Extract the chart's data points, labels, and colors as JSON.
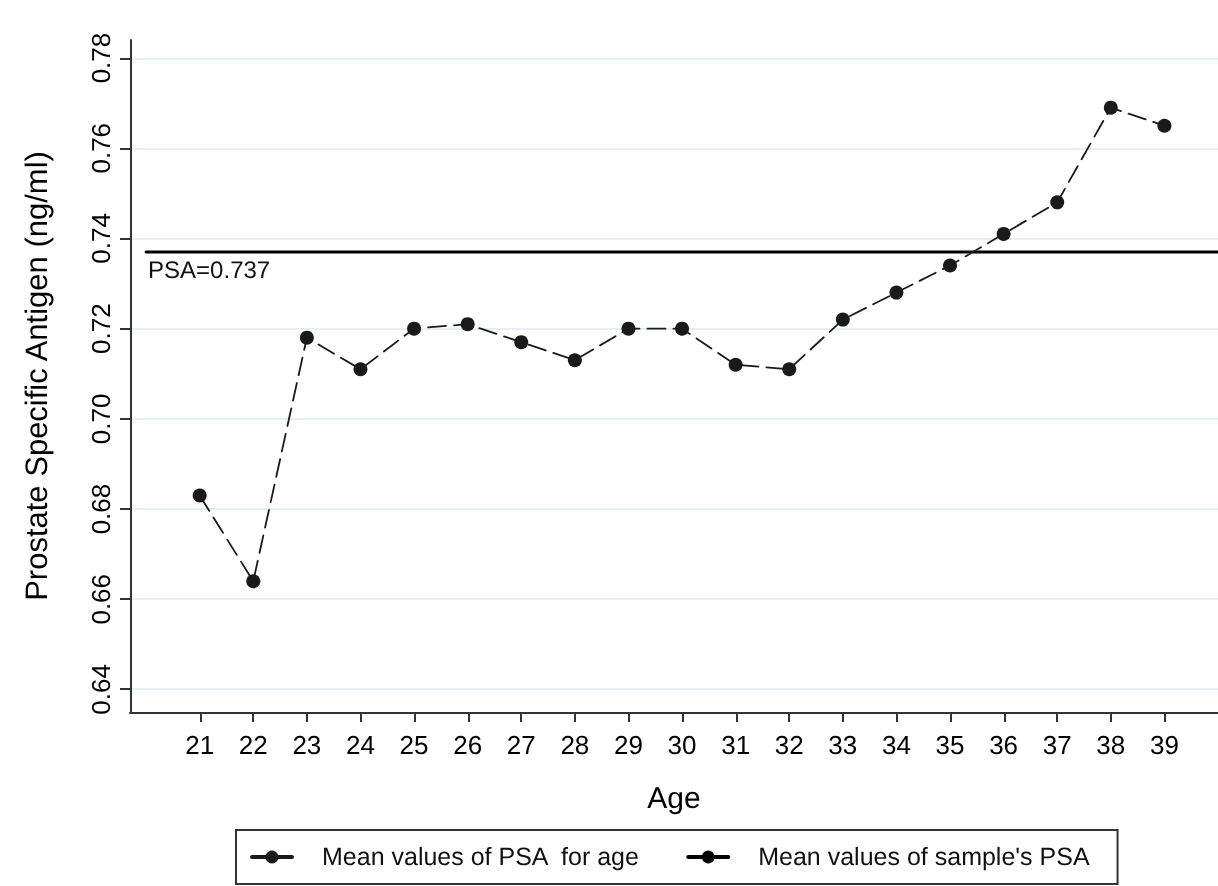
{
  "chart_data": {
    "type": "line",
    "xlabel": "Age",
    "ylabel": "Prostate Specific Antigen (ng/ml)",
    "x": [
      21,
      22,
      23,
      24,
      25,
      26,
      27,
      28,
      29,
      30,
      31,
      32,
      33,
      34,
      35,
      36,
      37,
      38,
      39
    ],
    "series": [
      {
        "name": "Mean values of PSA  for age",
        "color": "#1a1a1a",
        "marker": "circle",
        "line_style": "dashed",
        "values": [
          0.683,
          0.664,
          0.718,
          0.711,
          0.72,
          0.721,
          0.717,
          0.713,
          0.72,
          0.72,
          0.712,
          0.711,
          0.722,
          0.728,
          0.734,
          0.741,
          0.748,
          0.769,
          0.765
        ]
      },
      {
        "name": "Mean values of sample's PSA",
        "color": "#000000",
        "marker": "none",
        "line_style": "solid",
        "x": [
          20,
          40
        ],
        "values": [
          0.737,
          0.737
        ]
      }
    ],
    "xlim": [
      19.7,
      40
    ],
    "xticks": [
      21,
      22,
      23,
      24,
      25,
      26,
      27,
      28,
      29,
      30,
      31,
      32,
      33,
      34,
      35,
      36,
      37,
      38,
      39
    ],
    "ylim": [
      0.635,
      0.784
    ],
    "yticks": [
      0.64,
      0.66,
      0.68,
      {
        "value": 0.7,
        "label": "0.70"
      },
      0.72,
      0.74,
      0.76,
      0.78
    ],
    "grid": "y",
    "legend": "bottom",
    "annotations": [
      {
        "text": "PSA=0.737",
        "x": 20,
        "y": 0.737
      }
    ]
  }
}
